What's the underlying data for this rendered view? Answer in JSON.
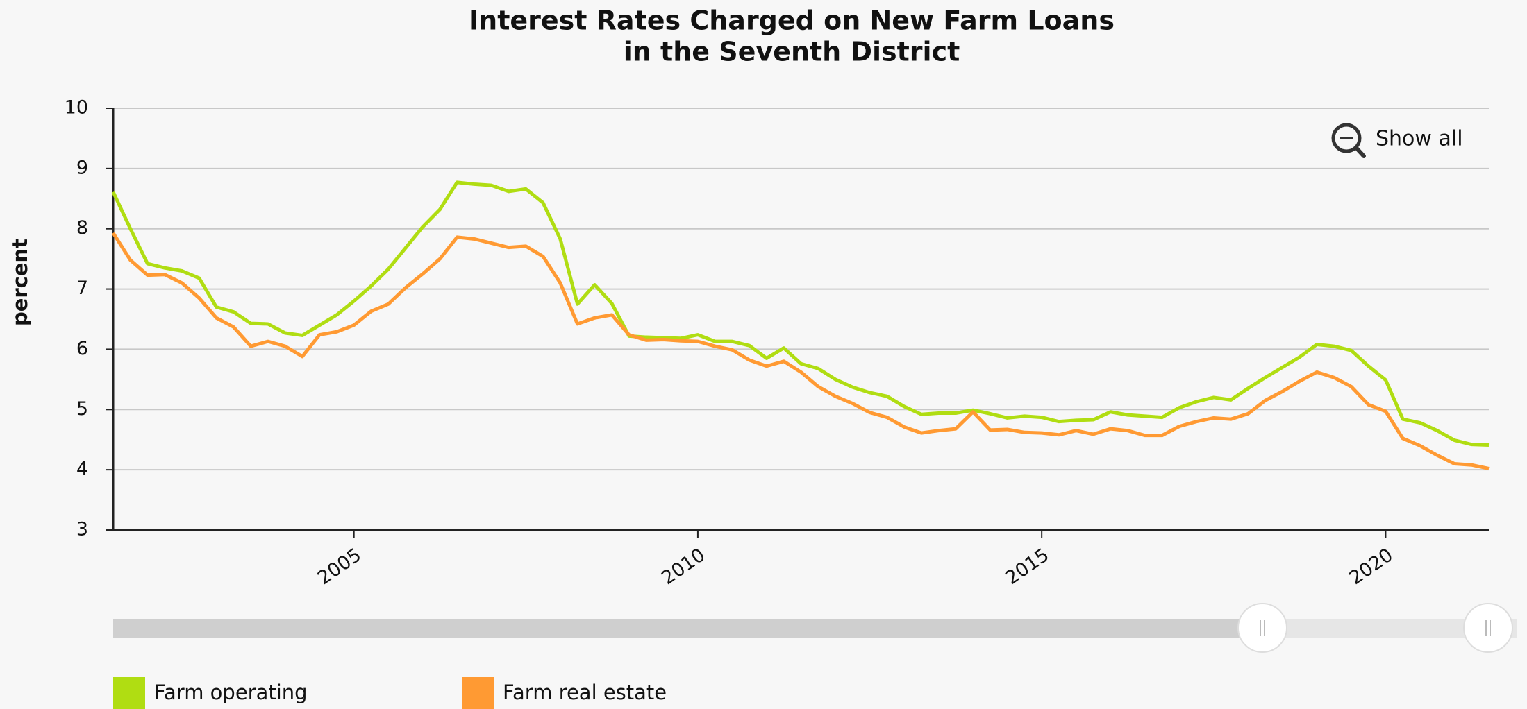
{
  "chart_data": {
    "type": "line",
    "title": [
      "Interest Rates Charged on New Farm Loans",
      "in the Seventh District"
    ],
    "y_label": "percent",
    "zoom_button": "Show all",
    "x": [
      2001.5,
      2001.75,
      2002,
      2002.25,
      2002.5,
      2002.75,
      2003,
      2003.25,
      2003.5,
      2003.75,
      2004,
      2004.25,
      2004.5,
      2004.75,
      2005,
      2005.25,
      2005.5,
      2005.75,
      2006,
      2006.25,
      2006.5,
      2006.75,
      2007,
      2007.25,
      2007.5,
      2007.75,
      2008,
      2008.25,
      2008.5,
      2008.75,
      2009,
      2009.25,
      2009.5,
      2009.75,
      2010,
      2010.25,
      2010.5,
      2010.75,
      2011,
      2011.25,
      2011.5,
      2011.75,
      2012,
      2012.25,
      2012.5,
      2012.75,
      2013,
      2013.25,
      2013.5,
      2013.75,
      2014,
      2014.25,
      2014.5,
      2014.75,
      2015,
      2015.25,
      2015.5,
      2015.75,
      2016,
      2016.25,
      2016.5,
      2016.75,
      2017,
      2017.25,
      2017.5,
      2017.75,
      2018,
      2018.25,
      2018.5,
      2018.75,
      2019,
      2019.25,
      2019.5,
      2019.75,
      2020,
      2020.25,
      2020.5,
      2020.75,
      2021,
      2021.25,
      2021.5
    ],
    "series": [
      {
        "name": "Farm operating",
        "color": "#b0dd12",
        "values": [
          8.61,
          8.0,
          7.42,
          7.35,
          7.3,
          7.18,
          6.7,
          6.62,
          6.43,
          6.42,
          6.27,
          6.23,
          6.4,
          6.57,
          6.8,
          7.05,
          7.33,
          7.68,
          8.03,
          8.32,
          8.77,
          8.74,
          8.72,
          8.62,
          8.66,
          8.43,
          7.83,
          6.75,
          7.07,
          6.76,
          6.22,
          6.2,
          6.19,
          6.18,
          6.24,
          6.13,
          6.13,
          6.06,
          5.85,
          6.02,
          5.76,
          5.68,
          5.5,
          5.37,
          5.28,
          5.22,
          5.05,
          4.92,
          4.94,
          4.94,
          4.99,
          4.93,
          4.86,
          4.89,
          4.87,
          4.8,
          4.82,
          4.83,
          4.96,
          4.91,
          4.89,
          4.87,
          5.03,
          5.13,
          5.2,
          5.16,
          5.35,
          5.53,
          5.7,
          5.87,
          6.08,
          6.05,
          5.98,
          5.72,
          5.49,
          4.84,
          4.78,
          4.65,
          4.49,
          4.42,
          4.41
        ]
      },
      {
        "name": "Farm real estate",
        "color": "#ff9a33",
        "values": [
          7.93,
          7.48,
          7.23,
          7.24,
          7.1,
          6.85,
          6.52,
          6.37,
          6.05,
          6.13,
          6.05,
          5.88,
          6.24,
          6.29,
          6.4,
          6.63,
          6.75,
          7.02,
          7.25,
          7.5,
          7.86,
          7.83,
          7.76,
          7.69,
          7.71,
          7.54,
          7.1,
          6.42,
          6.52,
          6.57,
          6.24,
          6.15,
          6.16,
          6.14,
          6.13,
          6.05,
          5.99,
          5.82,
          5.72,
          5.8,
          5.62,
          5.38,
          5.22,
          5.1,
          4.95,
          4.87,
          4.71,
          4.61,
          4.65,
          4.68,
          4.96,
          4.66,
          4.67,
          4.62,
          4.61,
          4.58,
          4.65,
          4.59,
          4.68,
          4.65,
          4.57,
          4.57,
          4.72,
          4.8,
          4.86,
          4.84,
          4.93,
          5.15,
          5.3,
          5.47,
          5.62,
          5.53,
          5.38,
          5.08,
          4.97,
          4.52,
          4.4,
          4.24,
          4.1,
          4.08,
          4.02
        ]
      }
    ],
    "xlim": [
      2001.5,
      2021.5
    ],
    "xticks": [
      2005,
      2010,
      2015,
      2020
    ],
    "ylim": [
      3,
      10
    ],
    "yticks": [
      3,
      4,
      5,
      6,
      7,
      8,
      9,
      10
    ],
    "grid": true,
    "legend": "bottom-left"
  }
}
